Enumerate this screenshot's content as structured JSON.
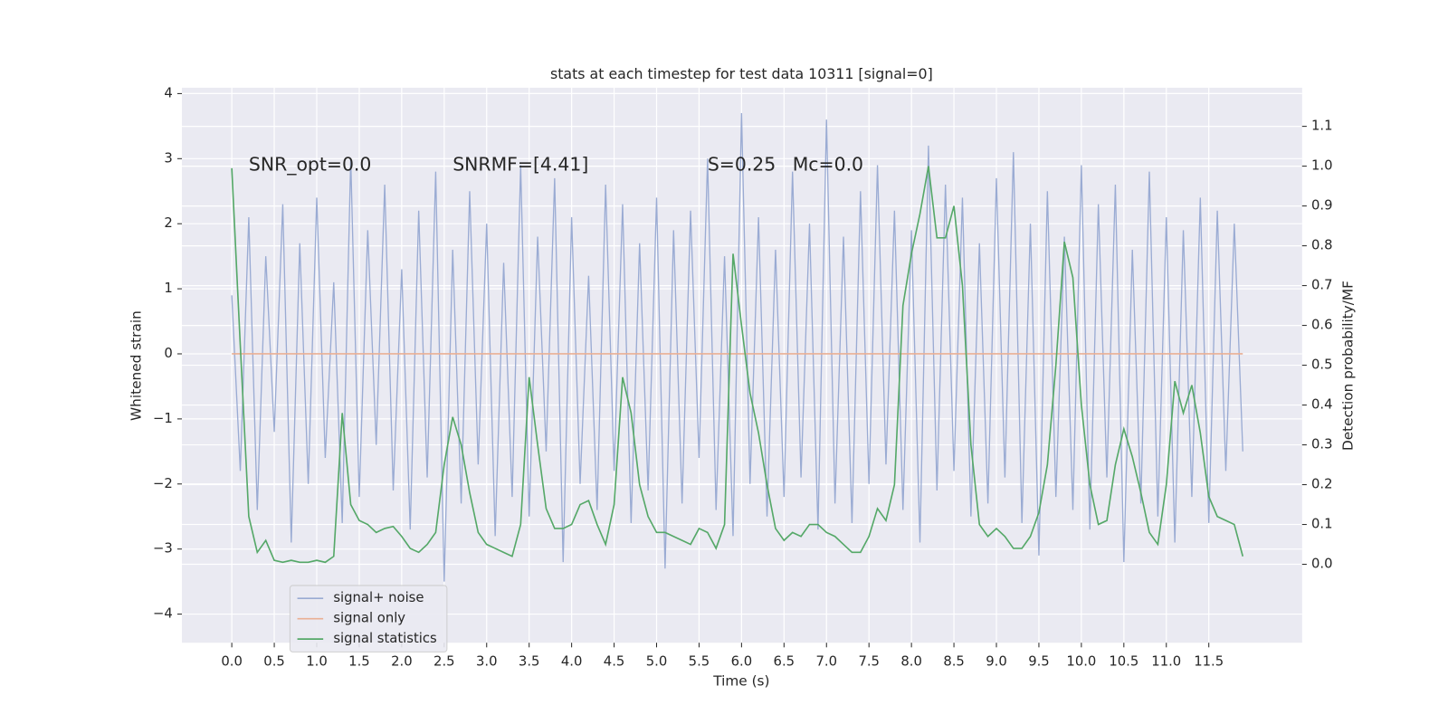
{
  "chart_data": {
    "type": "line",
    "title": "stats at each timestep for test data 10311 [signal=0]",
    "xlabel": "Time (s)",
    "ylabel": "Whitened strain",
    "y2label": "Detection probability/MF",
    "annotations": [
      "SNR_opt=0.0",
      "SNRMF=[4.41]",
      "S=0.25",
      "Mc=0.0"
    ],
    "grid": true,
    "legend": "lower left",
    "xlim": [
      -0.587,
      12.598
    ],
    "ylim": [
      -4.44,
      4.09
    ],
    "y2lim": [
      -0.197,
      1.197
    ],
    "xticks": [
      {
        "value": 0,
        "label": "0.0"
      },
      0.5,
      {
        "value": 1,
        "label": "1.0"
      },
      1.5,
      {
        "value": 2,
        "label": "2.0"
      },
      2.5,
      {
        "value": 3,
        "label": "3.0"
      },
      3.5,
      {
        "value": 4,
        "label": "4.0"
      },
      4.5,
      {
        "value": 5,
        "label": "5.0"
      },
      5.5,
      {
        "value": 6,
        "label": "6.0"
      },
      6.5,
      {
        "value": 7,
        "label": "7.0"
      },
      7.5,
      {
        "value": 8,
        "label": "8.0"
      },
      8.5,
      {
        "value": 9,
        "label": "9.0"
      },
      9.5,
      {
        "value": 10,
        "label": "10.0"
      },
      10.5,
      {
        "value": 11,
        "label": "11.0"
      },
      11.5
    ],
    "yticks": [
      {
        "value": -4,
        "label": "−4"
      },
      {
        "value": -3,
        "label": "−3"
      },
      {
        "value": -2,
        "label": "−2"
      },
      {
        "value": -1,
        "label": "−1"
      },
      0,
      1,
      2,
      3,
      4
    ],
    "y2ticks": [
      {
        "value": 0,
        "label": "0.0"
      },
      0.1,
      0.2,
      0.3,
      0.4,
      0.5,
      0.6,
      0.7,
      0.8,
      0.9,
      {
        "value": 1,
        "label": "1.0"
      },
      1.1
    ],
    "x": [
      0,
      0.1,
      0.2,
      0.3,
      0.4,
      0.5,
      0.6,
      0.7,
      0.8,
      0.9,
      1,
      1.1,
      1.2,
      1.3,
      1.4,
      1.5,
      1.6,
      1.7,
      1.8,
      1.9,
      2,
      2.1,
      2.2,
      2.3,
      2.4,
      2.5,
      2.6,
      2.7,
      2.8,
      2.9,
      3,
      3.1,
      3.2,
      3.3,
      3.4,
      3.5,
      3.6,
      3.7,
      3.8,
      3.9,
      4,
      4.1,
      4.2,
      4.3,
      4.4,
      4.5,
      4.6,
      4.7,
      4.8,
      4.9,
      5,
      5.1,
      5.2,
      5.3,
      5.4,
      5.5,
      5.6,
      5.7,
      5.8,
      5.9,
      6,
      6.1,
      6.2,
      6.3,
      6.4,
      6.5,
      6.6,
      6.7,
      6.8,
      6.9,
      7,
      7.1,
      7.2,
      7.3,
      7.4,
      7.5,
      7.6,
      7.7,
      7.8,
      7.9,
      8,
      8.1,
      8.2,
      8.3,
      8.4,
      8.5,
      8.6,
      8.7,
      8.8,
      8.9,
      9,
      9.1,
      9.2,
      9.3,
      9.4,
      9.5,
      9.6,
      9.7,
      9.8,
      9.9,
      10,
      10.1,
      10.2,
      10.3,
      10.4,
      10.5,
      10.6,
      10.7,
      10.8,
      10.9,
      11,
      11.1,
      11.2,
      11.3,
      11.4,
      11.5,
      11.6,
      11.7,
      11.8,
      11.9
    ],
    "series": [
      {
        "name": "signal+ noise",
        "color": "#9aabd3",
        "values": [
          0.9,
          -1.8,
          2.1,
          -2.4,
          1.5,
          -1.2,
          2.3,
          -2.9,
          1.7,
          -2.0,
          2.4,
          -1.6,
          1.1,
          -2.6,
          3.0,
          -2.2,
          1.9,
          -1.4,
          2.6,
          -2.1,
          1.3,
          -2.7,
          2.2,
          -1.9,
          2.8,
          -3.5,
          1.6,
          -2.3,
          2.5,
          -1.7,
          2.0,
          -2.8,
          1.4,
          -2.2,
          2.9,
          -2.5,
          1.8,
          -1.5,
          2.7,
          -3.2,
          2.1,
          -2.0,
          1.2,
          -2.4,
          2.6,
          -1.8,
          2.3,
          -2.6,
          1.7,
          -2.1,
          2.4,
          -3.3,
          1.9,
          -2.3,
          2.2,
          -1.6,
          3.0,
          -2.4,
          1.5,
          -2.8,
          3.7,
          -2.0,
          2.1,
          -2.5,
          1.6,
          -2.2,
          2.8,
          -1.9,
          2.0,
          -2.7,
          3.6,
          -2.3,
          1.8,
          -2.6,
          2.5,
          -2.0,
          2.9,
          -1.7,
          2.2,
          -2.4,
          1.9,
          -2.9,
          3.2,
          -2.1,
          2.6,
          -1.8,
          2.4,
          -2.5,
          1.7,
          -2.3,
          2.7,
          -1.9,
          3.1,
          -2.6,
          2.0,
          -3.1,
          2.5,
          -2.2,
          1.8,
          -2.4,
          2.9,
          -2.7,
          2.3,
          -1.9,
          2.6,
          -3.2,
          1.6,
          -2.3,
          2.8,
          -2.5,
          2.1,
          -2.9,
          1.9,
          -2.2,
          2.4,
          -2.6,
          2.2,
          -1.8,
          2.0,
          -1.5
        ]
      },
      {
        "name": "signal only",
        "color": "#eaaf94",
        "values": [
          0,
          0,
          0,
          0,
          0,
          0,
          0,
          0,
          0,
          0,
          0,
          0,
          0,
          0,
          0,
          0,
          0,
          0,
          0,
          0,
          0,
          0,
          0,
          0,
          0,
          0,
          0,
          0,
          0,
          0,
          0,
          0,
          0,
          0,
          0,
          0,
          0,
          0,
          0,
          0,
          0,
          0,
          0,
          0,
          0,
          0,
          0,
          0,
          0,
          0,
          0,
          0,
          0,
          0,
          0,
          0,
          0,
          0,
          0,
          0,
          0,
          0,
          0,
          0,
          0,
          0,
          0,
          0,
          0,
          0,
          0,
          0,
          0,
          0,
          0,
          0,
          0,
          0,
          0,
          0,
          0,
          0,
          0,
          0,
          0,
          0,
          0,
          0,
          0,
          0,
          0,
          0,
          0,
          0,
          0,
          0,
          0,
          0,
          0,
          0,
          0,
          0,
          0,
          0,
          0,
          0,
          0,
          0,
          0,
          0,
          0,
          0,
          0,
          0,
          0,
          0,
          0,
          0,
          0,
          0
        ]
      },
      {
        "name": "signal statistics",
        "color": "#55a868",
        "axis": "y2",
        "values": [
          0.995,
          0.55,
          0.12,
          0.03,
          0.06,
          0.01,
          0.005,
          0.01,
          0.005,
          0.005,
          0.01,
          0.005,
          0.02,
          0.38,
          0.15,
          0.11,
          0.1,
          0.08,
          0.09,
          0.095,
          0.07,
          0.04,
          0.03,
          0.05,
          0.08,
          0.25,
          0.37,
          0.3,
          0.18,
          0.08,
          0.05,
          0.04,
          0.03,
          0.02,
          0.1,
          0.47,
          0.3,
          0.14,
          0.09,
          0.09,
          0.1,
          0.15,
          0.16,
          0.1,
          0.05,
          0.15,
          0.47,
          0.38,
          0.2,
          0.12,
          0.08,
          0.08,
          0.07,
          0.06,
          0.05,
          0.09,
          0.08,
          0.04,
          0.1,
          0.78,
          0.6,
          0.43,
          0.33,
          0.2,
          0.09,
          0.06,
          0.08,
          0.07,
          0.1,
          0.1,
          0.08,
          0.07,
          0.05,
          0.03,
          0.03,
          0.07,
          0.14,
          0.11,
          0.2,
          0.65,
          0.78,
          0.88,
          1.0,
          0.82,
          0.82,
          0.9,
          0.7,
          0.3,
          0.1,
          0.07,
          0.09,
          0.07,
          0.04,
          0.04,
          0.07,
          0.13,
          0.25,
          0.5,
          0.81,
          0.72,
          0.4,
          0.2,
          0.1,
          0.11,
          0.25,
          0.34,
          0.27,
          0.18,
          0.08,
          0.05,
          0.2,
          0.46,
          0.38,
          0.45,
          0.33,
          0.17,
          0.12,
          0.11,
          0.1,
          0.02
        ]
      }
    ]
  }
}
